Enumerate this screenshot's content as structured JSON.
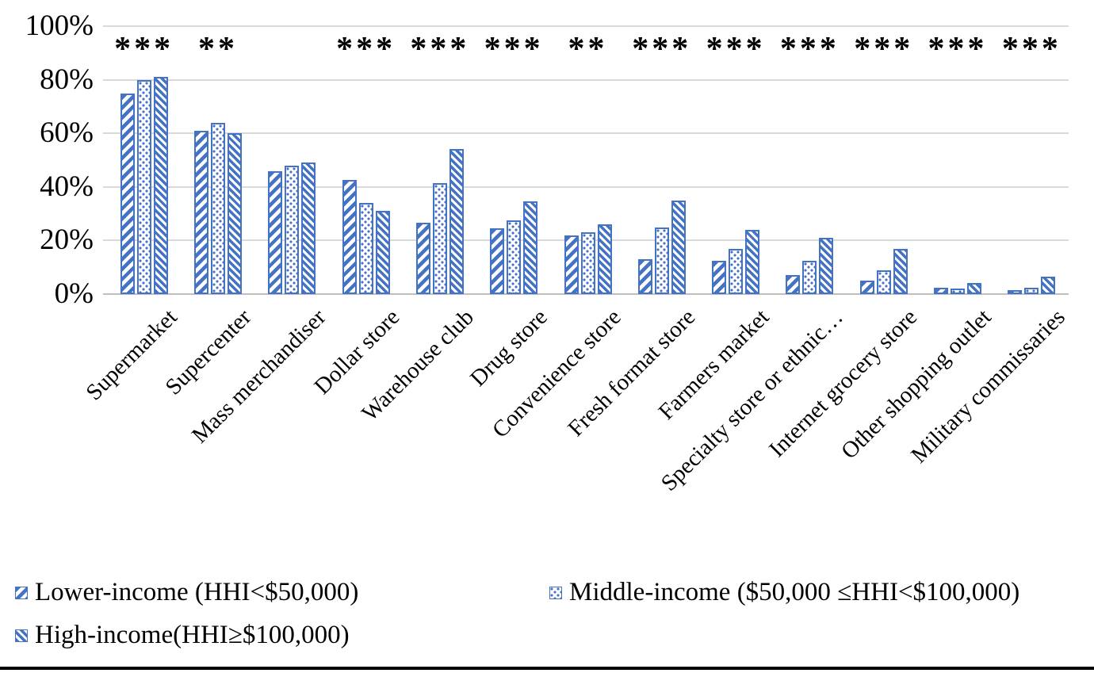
{
  "chart_data": {
    "type": "bar",
    "title": "",
    "categories": [
      "Supermarket",
      "Supercenter",
      "Mass merchandiser",
      "Dollar store",
      "Warehouse club",
      "Drug store",
      "Convenience store",
      "Fresh format store",
      "Farmers market",
      "Specialty store or ethnic…",
      "Internet grocery store",
      "Other shopping outlet",
      "Military commissaries"
    ],
    "significance": [
      "***",
      "**",
      "",
      "***",
      "***",
      "***",
      "**",
      "***",
      "***",
      "***",
      "***",
      "***",
      "***"
    ],
    "series": [
      {
        "name": "Lower-income (HHI<$50,000)",
        "pattern": "diagonal-up",
        "values": [
          75,
          61,
          46,
          42.5,
          26.5,
          24.5,
          22,
          13,
          12.5,
          7,
          5,
          2.5,
          1.5
        ]
      },
      {
        "name": "Middle-income ($50,000 ≤HHI<$100,000)",
        "pattern": "dots",
        "values": [
          80,
          64,
          48,
          34,
          41.5,
          27.5,
          23,
          25,
          17,
          12.5,
          9,
          2,
          2.5
        ]
      },
      {
        "name": "High-income(HHI≥$100,000)",
        "pattern": "diagonal-down",
        "values": [
          81,
          60,
          49,
          31,
          54,
          34.5,
          26,
          35,
          24,
          21,
          17,
          4,
          6.5
        ]
      }
    ],
    "xlabel": "",
    "ylabel": "",
    "ylim": [
      0,
      100
    ],
    "ytick_labels": [
      "0%",
      "20%",
      "40%",
      "60%",
      "80%",
      "100%"
    ],
    "grid": true,
    "legend_position": "bottom",
    "bar_color": "#4472C4",
    "gridline_color": "#D9D9D9",
    "axis_line_color": "#BFBFBF"
  }
}
